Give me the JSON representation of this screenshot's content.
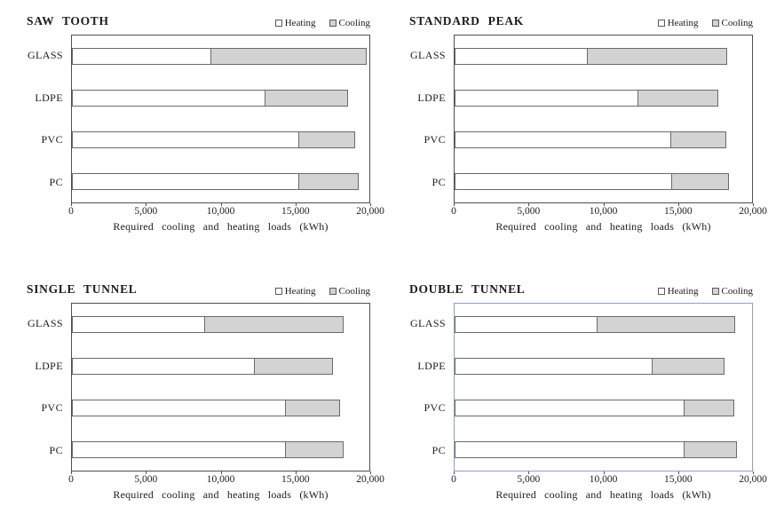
{
  "figure": {
    "legend": {
      "heating": "Heating",
      "cooling": "Cooling"
    },
    "colors": {
      "heating_fill": "#ffffff",
      "cooling_fill": "#d3d3d3",
      "bar_border": "#6a6a6a",
      "plot_border": "#4f4f4f",
      "highlight_plot_border": "#8f9fc4"
    },
    "ticks": [
      "0",
      "5,000",
      "10,000",
      "15,000",
      "20,000"
    ]
  },
  "chart_data": [
    {
      "type": "bar",
      "orientation": "horizontal",
      "stacked": true,
      "title": "SAW TOOTH",
      "categories": [
        "GLASS",
        "LDPE",
        "PVC",
        "PC"
      ],
      "series": [
        {
          "name": "Heating",
          "values": [
            9400,
            13000,
            15300,
            15300
          ]
        },
        {
          "name": "Cooling",
          "values": [
            10500,
            5600,
            3800,
            4050
          ]
        }
      ],
      "xlim": [
        0,
        20000
      ],
      "xlabel": "Required cooling and heating loads (kWh)",
      "legend_position": "top-right",
      "grid": false,
      "highlighted": false
    },
    {
      "type": "bar",
      "orientation": "horizontal",
      "stacked": true,
      "title": "STANDARD PEAK",
      "categories": [
        "GLASS",
        "LDPE",
        "PVC",
        "PC"
      ],
      "series": [
        {
          "name": "Heating",
          "values": [
            8950,
            12350,
            14550,
            14600
          ]
        },
        {
          "name": "Cooling",
          "values": [
            9450,
            5450,
            3750,
            3900
          ]
        }
      ],
      "xlim": [
        0,
        20000
      ],
      "xlabel": "Required cooling and heating loads (kWh)",
      "legend_position": "top-right",
      "grid": false,
      "highlighted": false
    },
    {
      "type": "bar",
      "orientation": "horizontal",
      "stacked": true,
      "title": "SINGLE TUNNEL",
      "categories": [
        "GLASS",
        "LDPE",
        "PVC",
        "PC"
      ],
      "series": [
        {
          "name": "Heating",
          "values": [
            8950,
            12300,
            14400,
            14400
          ]
        },
        {
          "name": "Cooling",
          "values": [
            9350,
            5300,
            3700,
            3900
          ]
        }
      ],
      "xlim": [
        0,
        20000
      ],
      "xlabel": "Required cooling and heating loads (kWh)",
      "legend_position": "top-right",
      "grid": false,
      "highlighted": false
    },
    {
      "type": "bar",
      "orientation": "horizontal",
      "stacked": true,
      "title": "DOUBLE TUNNEL",
      "categories": [
        "GLASS",
        "LDPE",
        "PVC",
        "PC"
      ],
      "series": [
        {
          "name": "Heating",
          "values": [
            9600,
            13300,
            15450,
            15450
          ]
        },
        {
          "name": "Cooling",
          "values": [
            9300,
            4900,
            3400,
            3600
          ]
        }
      ],
      "xlim": [
        0,
        20000
      ],
      "xlabel": "Required cooling and heating loads (kWh)",
      "legend_position": "top-right",
      "grid": false,
      "highlighted": true
    }
  ]
}
